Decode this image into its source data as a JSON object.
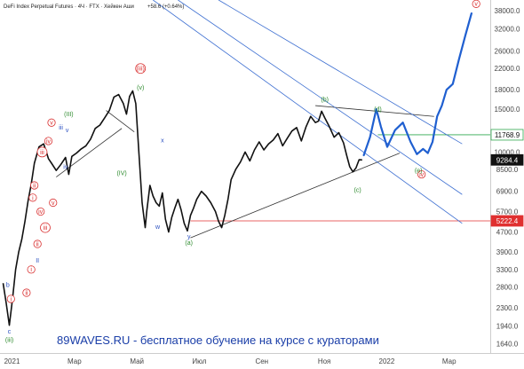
{
  "header": {
    "symbol": "DeFi Index Perpetual Futures · 4Ч · FTX · Хейкен Аши",
    "change": "+58.6 (+0.64%)"
  },
  "promo_text": "89WAVES.RU - бесплатное обучение на курсе с кураторами",
  "colors": {
    "price": "#111111",
    "channel": "#3d6fd1",
    "trendline": "#333333",
    "projection": "#1f5fd0",
    "green_line": "#2fa84f",
    "red_line": "#e03030",
    "wave_red": "#d93030",
    "wave_green": "#2e8b2e",
    "wave_blue": "#2a4fc0"
  },
  "chart_data": {
    "type": "line",
    "title": "DeFi Index Perpetual Futures · 4Ч · FTX · Хейкен Аши",
    "y_scale": "log",
    "ylim": [
      1500,
      42000
    ],
    "y_ticks": [
      "38000.0",
      "32000.0",
      "26000.0",
      "22000.0",
      "18000.0",
      "15000.0",
      "10000.0",
      "8500.0",
      "6900.0",
      "5700.0",
      "4700.0",
      "3900.0",
      "3300.0",
      "2800.0",
      "2300.0",
      "1940.0",
      "1640.0"
    ],
    "y_tick_values": [
      38000,
      32000,
      26000,
      22000,
      18000,
      15000,
      10000,
      8500,
      6900,
      5700,
      4700,
      3900,
      3300,
      2800,
      2300,
      1940,
      1640
    ],
    "x_ticks": [
      "2021",
      "Мар",
      "Май",
      "Июл",
      "Сен",
      "Ноя",
      "2022",
      "Мар"
    ],
    "x_tick_values": [
      0,
      2,
      4,
      6,
      8,
      10,
      12,
      14
    ],
    "xlim": [
      -0.1,
      15.6
    ],
    "series": [
      {
        "role": "price",
        "x": [
          0,
          0.1,
          0.2,
          0.3,
          0.4,
          0.5,
          0.6,
          0.7,
          0.8,
          0.9,
          1.0,
          1.15,
          1.3,
          1.45,
          1.55,
          1.7,
          1.85,
          2.0,
          2.1,
          2.2,
          2.35,
          2.5,
          2.65,
          2.8,
          2.95,
          3.1,
          3.25,
          3.4,
          3.55,
          3.7,
          3.85,
          3.95,
          4.05,
          4.15,
          4.25,
          4.35,
          4.45,
          4.55,
          4.6,
          4.7,
          4.8,
          4.9,
          5.0,
          5.1,
          5.2,
          5.3,
          5.4,
          5.5,
          5.6,
          5.7,
          5.8,
          5.9,
          6.0,
          6.1,
          6.2,
          6.35,
          6.5,
          6.65,
          6.8,
          6.9,
          7.0,
          7.1,
          7.2,
          7.3,
          7.45,
          7.6,
          7.75,
          7.9,
          8.05,
          8.2,
          8.35,
          8.5,
          8.65,
          8.8,
          8.95,
          9.1,
          9.25,
          9.4,
          9.55,
          9.7,
          9.85,
          10.0,
          10.1,
          10.2,
          10.3,
          10.45,
          10.6,
          10.75,
          10.9,
          11.0,
          11.1,
          11.2,
          11.3,
          11.4,
          11.5
        ],
        "y": [
          2900,
          2400,
          1950,
          2500,
          3300,
          3900,
          4400,
          5200,
          6300,
          7400,
          9000,
          10500,
          10800,
          9400,
          9000,
          8400,
          8900,
          9500,
          8100,
          9600,
          9900,
          10300,
          10600,
          11300,
          12500,
          12900,
          13800,
          14800,
          16800,
          17200,
          15800,
          14300,
          16900,
          17800,
          15800,
          9800,
          6200,
          4900,
          5700,
          7300,
          6600,
          6200,
          6000,
          6800,
          5300,
          4700,
          5400,
          5900,
          6400,
          5800,
          5100,
          4750,
          5500,
          5900,
          6400,
          6900,
          6600,
          6200,
          5700,
          5200,
          4900,
          5500,
          6400,
          7700,
          8500,
          9100,
          10000,
          9200,
          10200,
          11000,
          10200,
          10800,
          11200,
          11900,
          10600,
          11400,
          12200,
          12600,
          11100,
          12700,
          14000,
          13200,
          13400,
          14700,
          13800,
          12700,
          11500,
          12000,
          10900,
          9700,
          8700,
          8300,
          8600,
          9300,
          9284
        ]
      },
      {
        "role": "projection",
        "x": [
          11.55,
          11.75,
          11.95,
          12.1,
          12.3,
          12.55,
          12.8,
          13.05,
          13.25,
          13.45,
          13.6,
          13.75,
          13.9,
          14.05,
          14.2,
          14.4,
          14.6,
          14.8,
          15.0
        ],
        "y": [
          9700,
          11500,
          15000,
          12700,
          10500,
          12300,
          13200,
          11000,
          9800,
          10300,
          9900,
          11000,
          14000,
          15500,
          18000,
          19000,
          24000,
          30000,
          37000
        ]
      }
    ],
    "horizontal_lines": [
      {
        "label": "11768.9",
        "y": 11768.9,
        "x_start": 12.0
      },
      {
        "label": "9284.4",
        "y": 9284.4,
        "x_start": 11.5,
        "style": "last-price"
      },
      {
        "label": "5222.4",
        "y": 5222.4,
        "x_start": 6.0
      }
    ],
    "trendlines": [
      {
        "role": "trendline",
        "x": [
          1.7,
          3.8
        ],
        "y": [
          7900,
          12500
        ]
      },
      {
        "role": "trendline",
        "x": [
          3.3,
          4.2
        ],
        "y": [
          14800,
          12100
        ]
      },
      {
        "role": "trendline",
        "x": [
          6.0,
          12.7
        ],
        "y": [
          4450,
          9900
        ]
      },
      {
        "role": "trendline",
        "x": [
          10.0,
          13.8
        ],
        "y": [
          15500,
          14000
        ]
      },
      {
        "role": "channel",
        "x": [
          4.8,
          14.7
        ],
        "y": [
          42000,
          5100
        ]
      },
      {
        "role": "channel",
        "x": [
          5.6,
          14.7
        ],
        "y": [
          42000,
          6700
        ]
      },
      {
        "role": "channel",
        "x": [
          6.9,
          14.7
        ],
        "y": [
          42000,
          10800
        ]
      }
    ],
    "wave_labels": [
      {
        "text": "(iii)",
        "x": 4.4,
        "y": 22000,
        "color": "wave_red",
        "circled": true
      },
      {
        "text": "v",
        "x": 15.15,
        "y": 40500,
        "color": "wave_red",
        "circled": true
      },
      {
        "text": "iv",
        "x": 13.4,
        "y": 8100,
        "color": "wave_red",
        "circled": true
      },
      {
        "text": "v",
        "x": 1.55,
        "y": 13200,
        "color": "wave_red",
        "circled": true
      },
      {
        "text": "iv",
        "x": 1.45,
        "y": 11100,
        "color": "wave_red",
        "circled": true
      },
      {
        "text": "iii",
        "x": 1.25,
        "y": 10000,
        "color": "wave_red",
        "circled": true
      },
      {
        "text": "ii",
        "x": 1.0,
        "y": 7300,
        "color": "wave_red",
        "circled": true
      },
      {
        "text": "i",
        "x": 0.95,
        "y": 6500,
        "color": "wave_red",
        "circled": true
      },
      {
        "text": "v",
        "x": 1.6,
        "y": 6200,
        "color": "wave_red",
        "circled": true
      },
      {
        "text": "iv",
        "x": 1.2,
        "y": 5700,
        "color": "wave_red",
        "circled": true
      },
      {
        "text": "iii",
        "x": 1.35,
        "y": 4900,
        "color": "wave_red",
        "circled": true
      },
      {
        "text": "ii",
        "x": 1.1,
        "y": 4200,
        "color": "wave_red",
        "circled": true
      },
      {
        "text": "i",
        "x": 0.9,
        "y": 3300,
        "color": "wave_red",
        "circled": true
      },
      {
        "text": "ii",
        "x": 0.75,
        "y": 2650,
        "color": "wave_red",
        "circled": true
      },
      {
        "text": "i",
        "x": 0.25,
        "y": 2500,
        "color": "wave_red",
        "circled": true
      },
      {
        "text": "(III)",
        "x": 2.1,
        "y": 14300,
        "color": "wave_green"
      },
      {
        "text": "(IV)",
        "x": 3.8,
        "y": 8200,
        "color": "wave_green"
      },
      {
        "text": "(v)",
        "x": 4.4,
        "y": 18400,
        "color": "wave_green"
      },
      {
        "text": "(b)",
        "x": 10.3,
        "y": 16400,
        "color": "wave_green"
      },
      {
        "text": "(d)",
        "x": 12.0,
        "y": 15000,
        "color": "wave_green"
      },
      {
        "text": "(e)",
        "x": 13.3,
        "y": 8400,
        "color": "wave_green"
      },
      {
        "text": "(c)",
        "x": 11.35,
        "y": 7000,
        "color": "wave_green"
      },
      {
        "text": "(a)",
        "x": 5.95,
        "y": 4250,
        "color": "wave_green"
      },
      {
        "text": "(iii)",
        "x": 0.2,
        "y": 1700,
        "color": "wave_green"
      },
      {
        "text": "iii",
        "x": 1.85,
        "y": 12600,
        "color": "wave_blue"
      },
      {
        "text": "v",
        "x": 2.05,
        "y": 12300,
        "color": "wave_blue"
      },
      {
        "text": "iv",
        "x": 2.0,
        "y": 8700,
        "color": "wave_blue"
      },
      {
        "text": "x",
        "x": 5.1,
        "y": 11200,
        "color": "wave_blue"
      },
      {
        "text": "w",
        "x": 4.95,
        "y": 4950,
        "color": "wave_blue"
      },
      {
        "text": "y",
        "x": 5.95,
        "y": 4500,
        "color": "wave_blue"
      },
      {
        "text": "II",
        "x": 1.1,
        "y": 3600,
        "color": "wave_blue"
      },
      {
        "text": "b",
        "x": 0.15,
        "y": 2850,
        "color": "wave_blue"
      },
      {
        "text": "c",
        "x": 0.2,
        "y": 1840,
        "color": "wave_blue"
      }
    ]
  }
}
